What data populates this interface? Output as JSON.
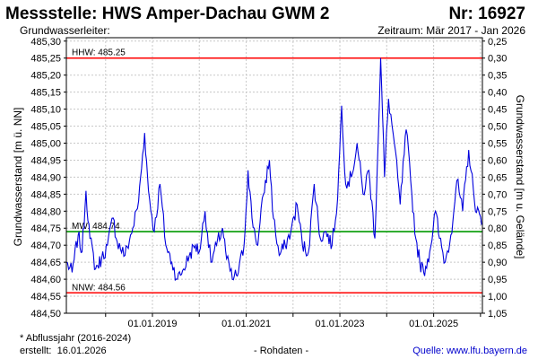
{
  "header": {
    "title": "Messstelle: HWS Amper-Dachau GWM 2",
    "station_number": "Nr: 16927",
    "aquifer_label": "Grundwasserleiter:",
    "period_label": "Zeitraum: Mär 2017 - Jan 2026"
  },
  "footer": {
    "footnote": "* Abflussjahr (2016-2024)",
    "created_label": "erstellt:",
    "created_date": "16.01.2026",
    "raw_data": "- Rohdaten -",
    "source": "Quelle: www.lfu.bayern.de"
  },
  "colors": {
    "series": "#0000dd",
    "limit_line": "#ff0000",
    "mean_line": "#009900",
    "grid": "#c8c8c8"
  },
  "chart_data": {
    "type": "line",
    "ylabel": "Grundwasserstand [m ü. NN]",
    "ylabel_right": "Grundwasserstand [m u. Gelände]",
    "xlim": [
      "2017-03-01",
      "2026-01-16"
    ],
    "ylim": [
      484.5,
      485.31
    ],
    "y_right_lim": [
      0.25,
      1.05
    ],
    "y_ticks": [
      "484,50",
      "484,55",
      "484,60",
      "484,65",
      "484,70",
      "484,75",
      "484,80",
      "484,85",
      "484,90",
      "484,95",
      "485,00",
      "485,05",
      "485,10",
      "485,15",
      "485,20",
      "485,25",
      "485,30"
    ],
    "y_right_ticks": [
      "0,25",
      "0,30",
      "0,35",
      "0,40",
      "0,45",
      "0,50",
      "0,55",
      "0,60",
      "0,65",
      "0,70",
      "0,75",
      "0,80",
      "0,85",
      "0,90",
      "0,95",
      "1,00",
      "1,05"
    ],
    "x_ticks": [
      "01.01.2019",
      "01.01.2021",
      "01.01.2023",
      "01.01.2025"
    ],
    "grid": true,
    "reference_lines": [
      {
        "label": "HHW: 485.25",
        "value": 485.25,
        "kind": "limit"
      },
      {
        "label": "MW: 484.74",
        "value": 484.74,
        "kind": "mean"
      },
      {
        "label": "NNW: 484.56",
        "value": 484.56,
        "kind": "limit"
      }
    ],
    "series": [
      {
        "points": [
          [
            "2017-03-01",
            484.65
          ],
          [
            "2017-04-15",
            484.62
          ],
          [
            "2017-06-01",
            484.73
          ],
          [
            "2017-07-01",
            484.68
          ],
          [
            "2017-08-01",
            484.86
          ],
          [
            "2017-09-01",
            484.72
          ],
          [
            "2017-10-15",
            484.63
          ],
          [
            "2017-12-01",
            484.66
          ],
          [
            "2018-01-15",
            484.7
          ],
          [
            "2018-03-01",
            484.78
          ],
          [
            "2018-04-01",
            484.71
          ],
          [
            "2018-06-01",
            484.67
          ],
          [
            "2018-08-01",
            484.75
          ],
          [
            "2018-09-15",
            484.83
          ],
          [
            "2018-11-01",
            485.03
          ],
          [
            "2018-12-01",
            484.86
          ],
          [
            "2019-01-15",
            484.74
          ],
          [
            "2019-03-01",
            484.88
          ],
          [
            "2019-04-15",
            484.7
          ],
          [
            "2019-06-01",
            484.65
          ],
          [
            "2019-07-15",
            484.6
          ],
          [
            "2019-09-01",
            484.63
          ],
          [
            "2019-10-15",
            484.67
          ],
          [
            "2019-12-01",
            484.7
          ],
          [
            "2020-01-01",
            484.68
          ],
          [
            "2020-02-15",
            484.8
          ],
          [
            "2020-04-01",
            484.65
          ],
          [
            "2020-05-15",
            484.7
          ],
          [
            "2020-07-01",
            484.75
          ],
          [
            "2020-08-01",
            484.66
          ],
          [
            "2020-09-15",
            484.6
          ],
          [
            "2020-11-01",
            484.62
          ],
          [
            "2020-12-15",
            484.7
          ],
          [
            "2021-01-15",
            484.92
          ],
          [
            "2021-02-15",
            484.78
          ],
          [
            "2021-04-01",
            484.7
          ],
          [
            "2021-05-15",
            484.85
          ],
          [
            "2021-07-01",
            484.95
          ],
          [
            "2021-08-01",
            484.78
          ],
          [
            "2021-09-15",
            484.67
          ],
          [
            "2021-11-01",
            484.7
          ],
          [
            "2021-12-15",
            484.74
          ],
          [
            "2022-02-01",
            484.82
          ],
          [
            "2022-03-15",
            484.7
          ],
          [
            "2022-05-01",
            484.68
          ],
          [
            "2022-06-15",
            484.88
          ],
          [
            "2022-08-01",
            484.72
          ],
          [
            "2022-09-15",
            484.74
          ],
          [
            "2022-11-01",
            484.7
          ],
          [
            "2022-12-15",
            484.84
          ],
          [
            "2023-01-15",
            485.11
          ],
          [
            "2023-02-15",
            484.88
          ],
          [
            "2023-04-01",
            484.9
          ],
          [
            "2023-05-15",
            485.0
          ],
          [
            "2023-07-01",
            484.85
          ],
          [
            "2023-08-15",
            484.92
          ],
          [
            "2023-10-01",
            484.72
          ],
          [
            "2023-11-15",
            485.25
          ],
          [
            "2023-12-15",
            484.9
          ],
          [
            "2024-01-15",
            485.13
          ],
          [
            "2024-03-01",
            485.0
          ],
          [
            "2024-04-15",
            484.82
          ],
          [
            "2024-06-01",
            485.04
          ],
          [
            "2024-07-15",
            484.85
          ],
          [
            "2024-08-15",
            484.72
          ],
          [
            "2024-09-15",
            484.65
          ],
          [
            "2024-10-15",
            484.62
          ],
          [
            "2024-12-01",
            484.68
          ],
          [
            "2025-01-15",
            484.8
          ],
          [
            "2025-02-15",
            484.72
          ],
          [
            "2025-04-01",
            484.65
          ],
          [
            "2025-05-15",
            484.73
          ],
          [
            "2025-07-01",
            484.89
          ],
          [
            "2025-08-15",
            484.8
          ],
          [
            "2025-10-01",
            484.98
          ],
          [
            "2025-11-15",
            484.83
          ],
          [
            "2026-01-10",
            484.76
          ]
        ]
      }
    ]
  }
}
